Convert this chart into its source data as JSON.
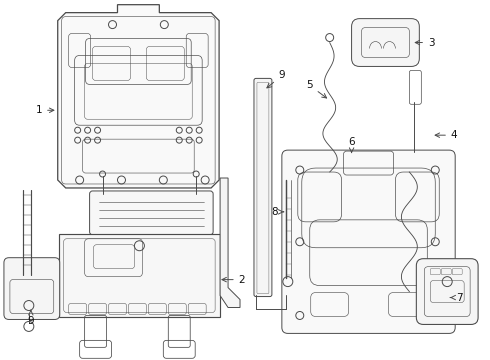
{
  "bg_color": "#ffffff",
  "line_color": "#4a4a4a",
  "lw": 0.7,
  "fig_width": 4.9,
  "fig_height": 3.6,
  "dpi": 100
}
